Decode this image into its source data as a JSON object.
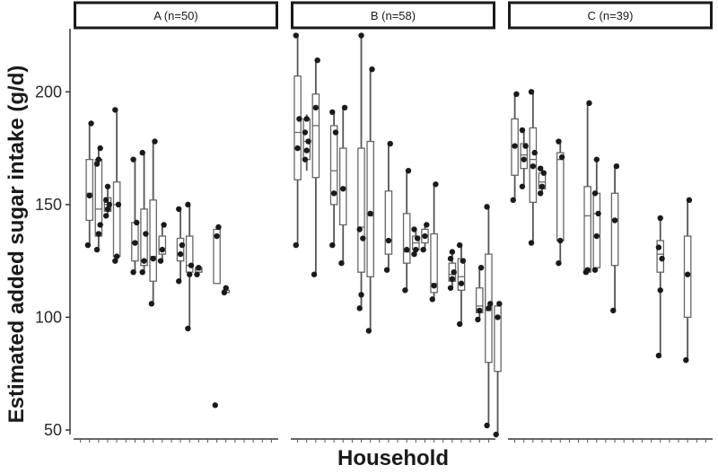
{
  "chart_data": {
    "type": "boxplot",
    "ylabel": "Estimated added sugar intake (g/d)",
    "xlabel": "Household",
    "ylim": [
      48,
      228
    ],
    "yticks": [
      50,
      100,
      150,
      200
    ],
    "panels": [
      {
        "label": "A (n=50)",
        "n_households": 22,
        "boxes": [
          {
            "pos": 2,
            "min": 132,
            "q1": 143,
            "median": 155,
            "q3": 170,
            "max": 186,
            "points": [
              132,
              154,
              186
            ]
          },
          {
            "pos": 3,
            "min": 130,
            "q1": 136,
            "median": 148,
            "q3": 170,
            "max": 175,
            "points": [
              130,
              137,
              141,
              168,
              170,
              175
            ]
          },
          {
            "pos": 4,
            "min": 145,
            "q1": 147,
            "median": 150,
            "q3": 153,
            "max": 158,
            "points": [
              145,
              148,
              150,
              152,
              158
            ]
          },
          {
            "pos": 5,
            "min": 125,
            "q1": 127,
            "median": 150,
            "q3": 160,
            "max": 192,
            "points": [
              125,
              127,
              150,
              192
            ]
          },
          {
            "pos": 7,
            "min": 120,
            "q1": 125,
            "median": 133,
            "q3": 142,
            "max": 170,
            "points": [
              120,
              133,
              142,
              170
            ]
          },
          {
            "pos": 8,
            "min": 120,
            "q1": 123,
            "median": 125,
            "q3": 148,
            "max": 173,
            "points": [
              120,
              125,
              137,
              173
            ]
          },
          {
            "pos": 9,
            "min": 106,
            "q1": 116,
            "median": 127,
            "q3": 152,
            "max": 178,
            "points": [
              106,
              126,
              178
            ]
          },
          {
            "pos": 10,
            "min": 125,
            "q1": 128,
            "median": 130,
            "q3": 136,
            "max": 141,
            "points": [
              125,
              130,
              141
            ]
          },
          {
            "pos": 12,
            "min": 116,
            "q1": 125,
            "median": 128,
            "q3": 135,
            "max": 148,
            "points": [
              116,
              128,
              132,
              148
            ]
          },
          {
            "pos": 13,
            "min": 95,
            "q1": 120,
            "median": 123,
            "q3": 136,
            "max": 150,
            "points": [
              95,
              119,
              123,
              150
            ]
          },
          {
            "pos": 14,
            "min": 119,
            "q1": 120,
            "median": 121,
            "q3": 122,
            "max": 123,
            "points": [
              119,
              122
            ]
          },
          {
            "pos": 16,
            "min": 115,
            "q1": 115,
            "median": 136,
            "q3": 139,
            "max": 140,
            "points": [
              61,
              136,
              140
            ]
          },
          {
            "pos": 17,
            "min": 111,
            "q1": 111,
            "median": 112,
            "q3": 112,
            "max": 113,
            "points": [
              111,
              113
            ]
          }
        ]
      },
      {
        "label": "B (n=58)",
        "n_households": 22,
        "boxes": [
          {
            "pos": 1,
            "min": 132,
            "q1": 161,
            "median": 182,
            "q3": 207,
            "max": 225,
            "points": [
              132,
              175,
              188,
              225
            ]
          },
          {
            "pos": 2,
            "min": 165,
            "q1": 170,
            "median": 178,
            "q3": 188,
            "max": 190,
            "points": [
              170,
              174,
              178,
              182,
              188
            ]
          },
          {
            "pos": 3,
            "min": 119,
            "q1": 162,
            "median": 185,
            "q3": 199,
            "max": 214,
            "points": [
              119,
              193,
              214
            ]
          },
          {
            "pos": 5,
            "min": 132,
            "q1": 150,
            "median": 165,
            "q3": 185,
            "max": 191,
            "points": [
              132,
              155,
              182,
              191
            ]
          },
          {
            "pos": 6,
            "min": 124,
            "q1": 141,
            "median": 157,
            "q3": 175,
            "max": 193,
            "points": [
              124,
              157,
              193
            ]
          },
          {
            "pos": 8,
            "min": 103,
            "q1": 120,
            "median": 140,
            "q3": 175,
            "max": 225,
            "points": [
              104,
              110,
              135,
              139,
              225
            ]
          },
          {
            "pos": 9,
            "min": 94,
            "q1": 118,
            "median": 145,
            "q3": 178,
            "max": 210,
            "points": [
              94,
              146,
              210
            ]
          },
          {
            "pos": 11,
            "min": 121,
            "q1": 128,
            "median": 134,
            "q3": 156,
            "max": 177,
            "points": [
              121,
              134,
              177
            ]
          },
          {
            "pos": 13,
            "min": 112,
            "q1": 124,
            "median": 129,
            "q3": 146,
            "max": 165,
            "points": [
              112,
              130,
              165
            ]
          },
          {
            "pos": 14,
            "min": 128,
            "q1": 130,
            "median": 133,
            "q3": 136,
            "max": 139,
            "points": [
              128,
              130,
              135,
              139
            ]
          },
          {
            "pos": 15,
            "min": 130,
            "q1": 133,
            "median": 136,
            "q3": 139,
            "max": 141,
            "points": [
              130,
              136,
              141
            ]
          },
          {
            "pos": 16,
            "min": 108,
            "q1": 111,
            "median": 115,
            "q3": 137,
            "max": 159,
            "points": [
              108,
              114,
              159
            ]
          },
          {
            "pos": 18,
            "min": 113,
            "q1": 116,
            "median": 119,
            "q3": 124,
            "max": 129,
            "points": [
              113,
              117,
              120,
              126,
              129
            ]
          },
          {
            "pos": 19,
            "min": 97,
            "q1": 112,
            "median": 118,
            "q3": 126,
            "max": 132,
            "points": [
              97,
              115,
              125,
              132
            ]
          },
          {
            "pos": 21,
            "min": 99,
            "q1": 102,
            "median": 105,
            "q3": 113,
            "max": 122,
            "points": [
              99,
              103,
              122
            ]
          },
          {
            "pos": 22,
            "min": 52,
            "q1": 80,
            "median": 103,
            "q3": 128,
            "max": 149,
            "points": [
              52,
              104,
              106,
              149
            ]
          },
          {
            "pos": 23,
            "min": 48,
            "q1": 76,
            "median": 100,
            "q3": 105,
            "max": 107,
            "points": [
              48,
              100,
              106
            ]
          }
        ]
      },
      {
        "label": "C (n=39)",
        "n_households": 22,
        "boxes": [
          {
            "pos": 1,
            "min": 152,
            "q1": 163,
            "median": 176,
            "q3": 188,
            "max": 199,
            "points": [
              152,
              176,
              199
            ]
          },
          {
            "pos": 2,
            "min": 158,
            "q1": 166,
            "median": 172,
            "q3": 177,
            "max": 184,
            "points": [
              158,
              170,
              176,
              183
            ]
          },
          {
            "pos": 3,
            "min": 133,
            "q1": 151,
            "median": 170,
            "q3": 184,
            "max": 200,
            "points": [
              133,
              167,
              173,
              200
            ]
          },
          {
            "pos": 4,
            "min": 155,
            "q1": 157,
            "median": 160,
            "q3": 164,
            "max": 167,
            "points": [
              155,
              158,
              164,
              166
            ]
          },
          {
            "pos": 6,
            "min": 124,
            "q1": 134,
            "median": 170,
            "q3": 173,
            "max": 178,
            "points": [
              124,
              134,
              171,
              178
            ]
          },
          {
            "pos": 9,
            "min": 119,
            "q1": 120,
            "median": 145,
            "q3": 158,
            "max": 195,
            "points": [
              120,
              121,
              195
            ]
          },
          {
            "pos": 10,
            "min": 121,
            "q1": 122,
            "median": 146,
            "q3": 155,
            "max": 170,
            "points": [
              121,
              136,
              146,
              155,
              170
            ]
          },
          {
            "pos": 12,
            "min": 103,
            "q1": 123,
            "median": 143,
            "q3": 155,
            "max": 167,
            "points": [
              103,
              143,
              167
            ]
          },
          {
            "pos": 17,
            "min": 83,
            "q1": 120,
            "median": 128,
            "q3": 134,
            "max": 144,
            "points": [
              83,
              112,
              126,
              131,
              144
            ]
          },
          {
            "pos": 20,
            "min": 81,
            "q1": 100,
            "median": 119,
            "q3": 136,
            "max": 152,
            "points": [
              81,
              119,
              152
            ]
          }
        ]
      }
    ]
  }
}
